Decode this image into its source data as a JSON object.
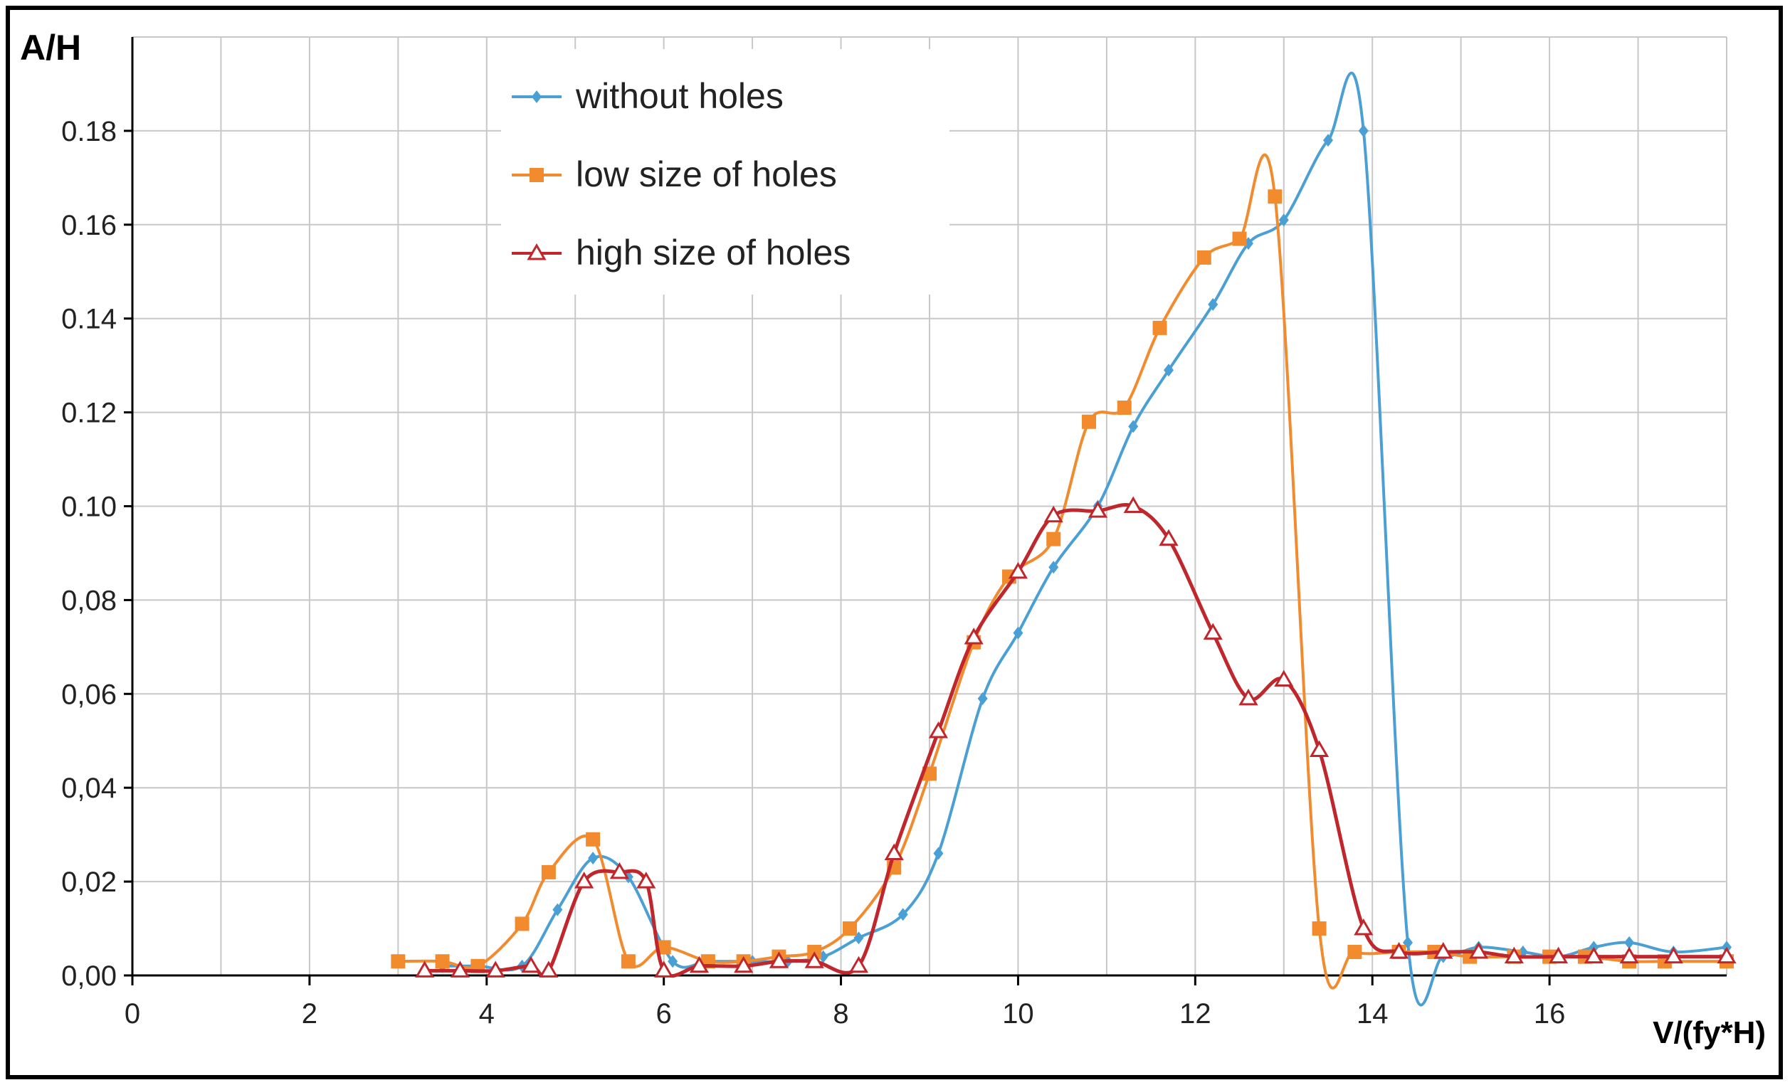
{
  "chart_data": {
    "type": "line",
    "title": "",
    "ylabel": "A/H",
    "xlabel": "V/(fy*H)",
    "xlim": [
      0,
      18
    ],
    "ylim": [
      0,
      0.2
    ],
    "x_ticks": [
      "0",
      "2",
      "4",
      "6",
      "8",
      "10",
      "12",
      "14",
      "16"
    ],
    "y_ticks": [
      "0,00",
      "0,02",
      "0,04",
      "0,06",
      "0,08",
      "0.10",
      "0.12",
      "0.14",
      "0.16",
      "0.18"
    ],
    "grid": true,
    "legend_position": "top-left",
    "series": [
      {
        "name": "without holes",
        "color": "#4a9fd4",
        "marker": "diamond",
        "points": [
          [
            3.5,
            0.002
          ],
          [
            3.9,
            0.002
          ],
          [
            4.4,
            0.002
          ],
          [
            4.8,
            0.014
          ],
          [
            5.2,
            0.025
          ],
          [
            5.6,
            0.021
          ],
          [
            6.1,
            0.003
          ],
          [
            6.5,
            0.003
          ],
          [
            7.0,
            0.003
          ],
          [
            7.4,
            0.003
          ],
          [
            7.8,
            0.004
          ],
          [
            8.2,
            0.008
          ],
          [
            8.7,
            0.013
          ],
          [
            9.1,
            0.026
          ],
          [
            9.6,
            0.059
          ],
          [
            10.0,
            0.073
          ],
          [
            10.4,
            0.087
          ],
          [
            10.9,
            0.1
          ],
          [
            11.3,
            0.117
          ],
          [
            11.7,
            0.129
          ],
          [
            12.2,
            0.143
          ],
          [
            12.6,
            0.156
          ],
          [
            13.0,
            0.161
          ],
          [
            13.5,
            0.178
          ],
          [
            13.9,
            0.18
          ],
          [
            14.4,
            0.007
          ],
          [
            14.8,
            0.004
          ],
          [
            15.2,
            0.006
          ],
          [
            15.7,
            0.005
          ],
          [
            16.1,
            0.004
          ],
          [
            16.5,
            0.006
          ],
          [
            16.9,
            0.007
          ],
          [
            17.4,
            0.005
          ],
          [
            18.0,
            0.006
          ]
        ]
      },
      {
        "name": "low size of holes",
        "color": "#f28a2e",
        "marker": "square",
        "points": [
          [
            3.0,
            0.003
          ],
          [
            3.5,
            0.003
          ],
          [
            3.9,
            0.002
          ],
          [
            4.4,
            0.011
          ],
          [
            4.7,
            0.022
          ],
          [
            5.2,
            0.029
          ],
          [
            5.6,
            0.003
          ],
          [
            6.0,
            0.006
          ],
          [
            6.5,
            0.003
          ],
          [
            6.9,
            0.003
          ],
          [
            7.3,
            0.004
          ],
          [
            7.7,
            0.005
          ],
          [
            8.1,
            0.01
          ],
          [
            8.6,
            0.023
          ],
          [
            9.0,
            0.043
          ],
          [
            9.5,
            0.071
          ],
          [
            9.9,
            0.085
          ],
          [
            10.4,
            0.093
          ],
          [
            10.8,
            0.118
          ],
          [
            11.2,
            0.121
          ],
          [
            11.6,
            0.138
          ],
          [
            12.1,
            0.153
          ],
          [
            12.5,
            0.157
          ],
          [
            12.9,
            0.166
          ],
          [
            13.4,
            0.01
          ],
          [
            13.8,
            0.005
          ],
          [
            14.3,
            0.005
          ],
          [
            14.7,
            0.005
          ],
          [
            15.1,
            0.004
          ],
          [
            15.6,
            0.004
          ],
          [
            16.0,
            0.004
          ],
          [
            16.4,
            0.004
          ],
          [
            16.9,
            0.003
          ],
          [
            17.3,
            0.003
          ],
          [
            18.0,
            0.003
          ]
        ]
      },
      {
        "name": "high size of holes",
        "color": "#c0272d",
        "marker": "triangle",
        "points": [
          [
            3.3,
            0.001
          ],
          [
            3.7,
            0.001
          ],
          [
            4.1,
            0.001
          ],
          [
            4.5,
            0.002
          ],
          [
            4.7,
            0.001
          ],
          [
            5.1,
            0.02
          ],
          [
            5.5,
            0.022
          ],
          [
            5.8,
            0.02
          ],
          [
            6.0,
            0.001
          ],
          [
            6.4,
            0.002
          ],
          [
            6.9,
            0.002
          ],
          [
            7.3,
            0.003
          ],
          [
            7.7,
            0.003
          ],
          [
            8.2,
            0.002
          ],
          [
            8.6,
            0.026
          ],
          [
            9.1,
            0.052
          ],
          [
            9.5,
            0.072
          ],
          [
            10.0,
            0.086
          ],
          [
            10.4,
            0.098
          ],
          [
            10.9,
            0.099
          ],
          [
            11.3,
            0.1
          ],
          [
            11.7,
            0.093
          ],
          [
            12.2,
            0.073
          ],
          [
            12.6,
            0.059
          ],
          [
            13.0,
            0.063
          ],
          [
            13.4,
            0.048
          ],
          [
            13.9,
            0.01
          ],
          [
            14.3,
            0.005
          ],
          [
            14.8,
            0.005
          ],
          [
            15.2,
            0.005
          ],
          [
            15.6,
            0.004
          ],
          [
            16.1,
            0.004
          ],
          [
            16.5,
            0.004
          ],
          [
            16.9,
            0.004
          ],
          [
            17.4,
            0.004
          ],
          [
            18.0,
            0.004
          ]
        ]
      }
    ]
  }
}
